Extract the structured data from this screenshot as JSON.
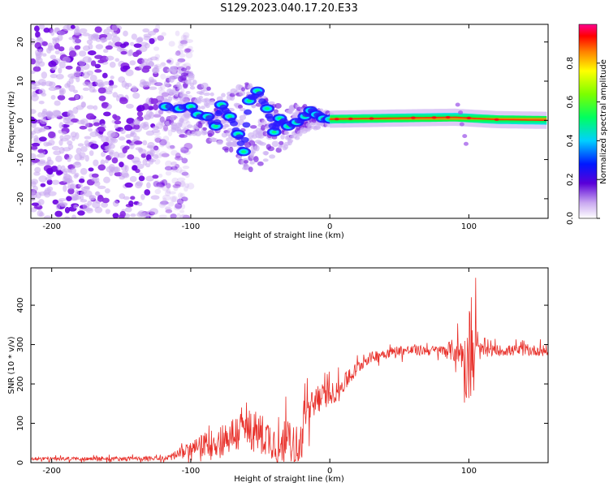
{
  "title": "S129.2023.040.17.20.E33",
  "colors": {
    "trace": "#e8302a",
    "axis": "#000000",
    "cloud": "#8a2be2"
  },
  "chart_data": [
    {
      "type": "heatmap",
      "name": "spectrogram",
      "xlabel": "Height of straight line (km)",
      "ylabel": "Frequency (Hz)",
      "xlim": [
        -215,
        157
      ],
      "ylim": [
        -25,
        24.5
      ],
      "xticks": [
        -200,
        -100,
        0,
        100
      ],
      "yticks": [
        -20,
        -10,
        0,
        10,
        20
      ],
      "grid": false,
      "colorbar": {
        "label": "Normalized spectral amplitude",
        "range": [
          0,
          1
        ],
        "ticks": [
          "0.0",
          "0.2",
          "0.4",
          "0.6",
          "0.8"
        ],
        "tick_values": [
          0.0,
          0.2,
          0.4,
          0.6,
          0.8
        ],
        "colormap": "rainbow"
      },
      "features": {
        "noise_cloud_x": [
          -215,
          -115
        ],
        "noise_cloud_freq": [
          -25,
          24
        ],
        "wandering_signal": [
          [
            -118,
            3.5
          ],
          [
            -108,
            3.0
          ],
          [
            -100,
            3.5
          ],
          [
            -95,
            1.5
          ],
          [
            -88,
            1.0
          ],
          [
            -82,
            -1.5
          ],
          [
            -78,
            4.0
          ],
          [
            -72,
            1.0
          ],
          [
            -66,
            -3.5
          ],
          [
            -62,
            -8.0
          ],
          [
            -58,
            5.0
          ],
          [
            -52,
            7.5
          ],
          [
            -45,
            3.0
          ],
          [
            -40,
            -3.0
          ],
          [
            -36,
            0.5
          ],
          [
            -30,
            -1.5
          ],
          [
            -24,
            -0.5
          ],
          [
            -18,
            1.0
          ],
          [
            -14,
            2.5
          ],
          [
            -10,
            1.5
          ],
          [
            -5,
            0.5
          ],
          [
            0,
            0.3
          ],
          [
            10,
            0.3
          ]
        ],
        "steady_band": [
          [
            0,
            0.3
          ],
          [
            50,
            0.6
          ],
          [
            90,
            0.8
          ],
          [
            120,
            0.2
          ],
          [
            157,
            0.0
          ]
        ],
        "fan_top": [
          [
            -118,
            15
          ],
          [
            -100,
            12
          ],
          [
            -80,
            6
          ],
          [
            -60,
            10
          ],
          [
            -40,
            4
          ],
          [
            -20,
            4
          ],
          [
            0,
            2
          ]
        ],
        "fan_bottom": [
          [
            -118,
            -2
          ],
          [
            -100,
            -4
          ],
          [
            -80,
            -6
          ],
          [
            -60,
            -13
          ],
          [
            -40,
            -10
          ],
          [
            -20,
            -3
          ],
          [
            0,
            -1
          ]
        ]
      }
    },
    {
      "type": "line",
      "name": "snr",
      "xlabel": "Height of straight line (km)",
      "ylabel": "SNR (10 * v/v)",
      "xlim": [
        -215,
        157
      ],
      "ylim": [
        0,
        495
      ],
      "xticks": [
        -200,
        -100,
        0,
        100
      ],
      "yticks": [
        0,
        100,
        200,
        300,
        400
      ],
      "grid": false,
      "series": [
        {
          "baseline": [
            [
              -215,
              10
            ],
            [
              -120,
              10
            ],
            [
              -110,
              20
            ],
            [
              -100,
              35
            ],
            [
              -90,
              45
            ],
            [
              -80,
              55
            ],
            [
              -70,
              70
            ],
            [
              -60,
              85
            ],
            [
              -50,
              75
            ],
            [
              -40,
              55
            ],
            [
              -35,
              20
            ],
            [
              -31,
              80
            ],
            [
              -28,
              50
            ],
            [
              -23,
              15
            ],
            [
              -18,
              110
            ],
            [
              -10,
              160
            ],
            [
              0,
              175
            ],
            [
              5,
              180
            ],
            [
              15,
              220
            ],
            [
              25,
              260
            ],
            [
              35,
              275
            ],
            [
              50,
              285
            ],
            [
              70,
              285
            ],
            [
              90,
              285
            ],
            [
              95,
              280
            ],
            [
              100,
              220
            ],
            [
              102,
              270
            ],
            [
              104,
              285
            ],
            [
              120,
              285
            ],
            [
              157,
              285
            ]
          ],
          "noise_amplitude": [
            [
              -215,
              6
            ],
            [
              -120,
              8
            ],
            [
              -110,
              20
            ],
            [
              -100,
              25
            ],
            [
              -80,
              60
            ],
            [
              -60,
              80
            ],
            [
              -40,
              70
            ],
            [
              -33,
              60
            ],
            [
              -20,
              70
            ],
            [
              0,
              40
            ],
            [
              30,
              20
            ],
            [
              80,
              18
            ],
            [
              95,
              60
            ],
            [
              100,
              170
            ],
            [
              104,
              60
            ],
            [
              110,
              20
            ],
            [
              157,
              20
            ]
          ]
        }
      ]
    }
  ]
}
